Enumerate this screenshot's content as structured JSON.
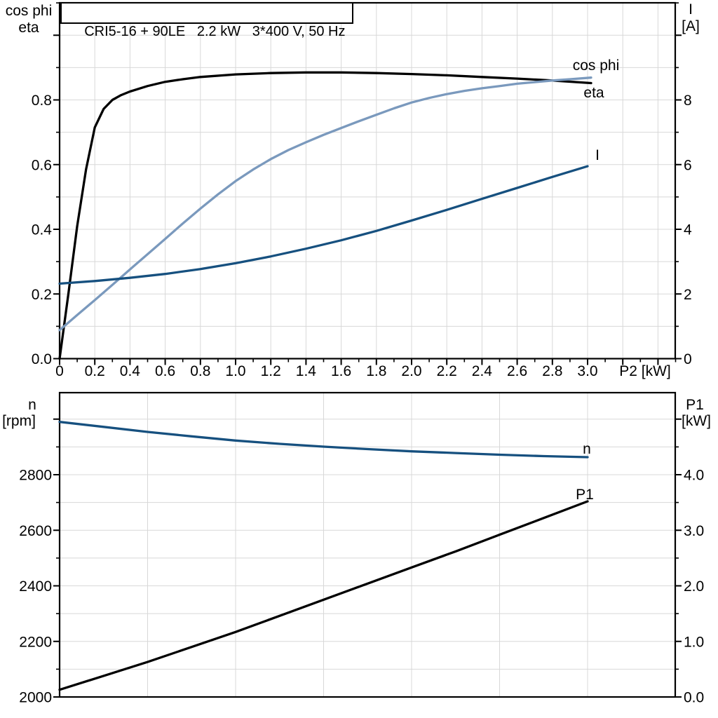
{
  "title_box": "CRI5-16 + 90LE   2.2 kW   3*400 V, 50 Hz",
  "colors": {
    "eta": "#000000",
    "cos_phi": "#7a99bd",
    "current": "#16507f",
    "n": "#16507f",
    "p1": "#000000",
    "grid": "#d8d8d8",
    "axis": "#000000",
    "background": "#ffffff"
  },
  "chart_data": [
    {
      "type": "line",
      "name": "top-chart",
      "title": "CRI5-16 + 90LE   2.2 kW   3*400 V, 50 Hz",
      "x_axis": {
        "label": "P2 [kW]",
        "min": 0,
        "max": 3.498,
        "grid_step": 0.2,
        "major_tick_step": 0.2,
        "minor_tick_step": 0.1,
        "ticks": true,
        "tick_labels": [
          "0",
          "0.2",
          "0.4",
          "0.6",
          "0.8",
          "1.0",
          "1.2",
          "1.4",
          "1.6",
          "1.8",
          "2.0",
          "2.2",
          "2.4",
          "2.6",
          "2.8",
          "3.0"
        ],
        "label_values": [
          0,
          0.2,
          0.4,
          0.6,
          0.8,
          1.0,
          1.2,
          1.4,
          1.6,
          1.8,
          2.0,
          2.2,
          2.4,
          2.6,
          2.8,
          3.0
        ]
      },
      "left_axis": {
        "title": [
          "cos phi",
          "eta"
        ],
        "min": 0,
        "max": 1.1,
        "grid_step": 0.1,
        "major_tick_step": 0.2,
        "minor_tick_step": 0.1,
        "tick_labels": [
          "0.0",
          "0.2",
          "0.4",
          "0.6",
          "0.8"
        ],
        "label_values": [
          0,
          0.2,
          0.4,
          0.6,
          0.8
        ]
      },
      "right_axis": {
        "title": [
          "I",
          "[A]"
        ],
        "min": 0,
        "max": 11,
        "major_tick_step": 2,
        "minor_tick_step": 1,
        "tick_labels": [
          "0",
          "2",
          "4",
          "6",
          "8"
        ],
        "label_values": [
          0,
          2,
          4,
          6,
          8
        ]
      },
      "series": [
        {
          "name": "eta",
          "axis": "left",
          "color_key": "eta",
          "label": "eta",
          "label_xy": [
            847,
            139
          ],
          "points": [
            [
              0,
              0
            ],
            [
              0.05,
              0.2
            ],
            [
              0.1,
              0.41
            ],
            [
              0.15,
              0.585
            ],
            [
              0.2,
              0.715
            ],
            [
              0.25,
              0.772
            ],
            [
              0.3,
              0.8
            ],
            [
              0.35,
              0.815
            ],
            [
              0.4,
              0.826
            ],
            [
              0.5,
              0.843
            ],
            [
              0.6,
              0.856
            ],
            [
              0.7,
              0.864
            ],
            [
              0.8,
              0.871
            ],
            [
              1.0,
              0.879
            ],
            [
              1.2,
              0.883
            ],
            [
              1.4,
              0.885
            ],
            [
              1.6,
              0.885
            ],
            [
              1.8,
              0.883
            ],
            [
              2.0,
              0.88
            ],
            [
              2.2,
              0.876
            ],
            [
              2.4,
              0.871
            ],
            [
              2.6,
              0.866
            ],
            [
              2.8,
              0.86
            ],
            [
              3.02,
              0.852
            ]
          ]
        },
        {
          "name": "cos-phi",
          "axis": "left",
          "color_key": "cos_phi",
          "label": "cos phi",
          "label_xy": [
            850,
            100
          ],
          "points": [
            [
              0,
              0.088
            ],
            [
              0.1,
              0.135
            ],
            [
              0.2,
              0.181
            ],
            [
              0.3,
              0.228
            ],
            [
              0.4,
              0.276
            ],
            [
              0.5,
              0.323
            ],
            [
              0.6,
              0.37
            ],
            [
              0.7,
              0.418
            ],
            [
              0.8,
              0.464
            ],
            [
              0.9,
              0.508
            ],
            [
              1.0,
              0.549
            ],
            [
              1.1,
              0.585
            ],
            [
              1.2,
              0.617
            ],
            [
              1.3,
              0.645
            ],
            [
              1.4,
              0.669
            ],
            [
              1.5,
              0.692
            ],
            [
              1.6,
              0.713
            ],
            [
              1.7,
              0.734
            ],
            [
              1.8,
              0.754
            ],
            [
              1.9,
              0.774
            ],
            [
              2.0,
              0.792
            ],
            [
              2.1,
              0.806
            ],
            [
              2.2,
              0.818
            ],
            [
              2.3,
              0.828
            ],
            [
              2.4,
              0.836
            ],
            [
              2.5,
              0.843
            ],
            [
              2.6,
              0.85
            ],
            [
              2.7,
              0.855
            ],
            [
              2.8,
              0.86
            ],
            [
              2.9,
              0.864
            ],
            [
              3.02,
              0.869
            ]
          ]
        },
        {
          "name": "current",
          "axis": "right",
          "color_key": "current",
          "label": "I",
          "label_xy": [
            852,
            228
          ],
          "points": [
            [
              0,
              2.32
            ],
            [
              0.2,
              2.4
            ],
            [
              0.4,
              2.5
            ],
            [
              0.6,
              2.62
            ],
            [
              0.8,
              2.77
            ],
            [
              1.0,
              2.95
            ],
            [
              1.2,
              3.16
            ],
            [
              1.4,
              3.4
            ],
            [
              1.6,
              3.66
            ],
            [
              1.8,
              3.95
            ],
            [
              2.0,
              4.27
            ],
            [
              2.2,
              4.6
            ],
            [
              2.4,
              4.94
            ],
            [
              2.6,
              5.28
            ],
            [
              2.8,
              5.62
            ],
            [
              3.0,
              5.95
            ]
          ]
        }
      ]
    },
    {
      "type": "line",
      "name": "bottom-chart",
      "title": "",
      "x_axis": {
        "label": "",
        "min": 0,
        "max": 3.498,
        "grid_step": 0.5,
        "ticks": false,
        "tick_labels": [],
        "label_values": []
      },
      "left_axis": {
        "title": [
          "n",
          "[rpm]"
        ],
        "min": 2000,
        "max": 3095,
        "grid_step": 100,
        "major_tick_step": 200,
        "minor_tick_step": 100,
        "tick_labels": [
          "2000",
          "2200",
          "2400",
          "2600",
          "2800"
        ],
        "label_values": [
          2000,
          2200,
          2400,
          2600,
          2800
        ]
      },
      "right_axis": {
        "title": [
          "P1",
          "[kW]"
        ],
        "min": 0,
        "max": 5.48,
        "major_tick_step": 1,
        "minor_tick_step": 0.5,
        "tick_labels": [
          "0.0",
          "1.0",
          "2.0",
          "3.0",
          "4.0"
        ],
        "label_values": [
          0,
          1,
          2,
          3,
          4
        ]
      },
      "series": [
        {
          "name": "n",
          "axis": "left",
          "color_key": "n",
          "label": "n",
          "label_xy": [
            837,
            647
          ],
          "points": [
            [
              0,
              2990
            ],
            [
              0.25,
              2972
            ],
            [
              0.5,
              2954
            ],
            [
              0.75,
              2938
            ],
            [
              1.0,
              2923
            ],
            [
              1.25,
              2911
            ],
            [
              1.5,
              2901
            ],
            [
              1.75,
              2892
            ],
            [
              2.0,
              2884
            ],
            [
              2.25,
              2878
            ],
            [
              2.5,
              2872
            ],
            [
              2.75,
              2867
            ],
            [
              3.0,
              2863
            ]
          ]
        },
        {
          "name": "p1",
          "axis": "right",
          "color_key": "p1",
          "label": "P1",
          "label_xy": [
            834,
            712
          ],
          "points": [
            [
              0,
              0.13
            ],
            [
              0.25,
              0.38
            ],
            [
              0.5,
              0.63
            ],
            [
              0.75,
              0.9
            ],
            [
              1.0,
              1.17
            ],
            [
              1.25,
              1.46
            ],
            [
              1.5,
              1.75
            ],
            [
              1.75,
              2.04
            ],
            [
              2.0,
              2.33
            ],
            [
              2.25,
              2.62
            ],
            [
              2.5,
              2.92
            ],
            [
              2.75,
              3.22
            ],
            [
              3.0,
              3.52
            ]
          ]
        }
      ]
    }
  ]
}
